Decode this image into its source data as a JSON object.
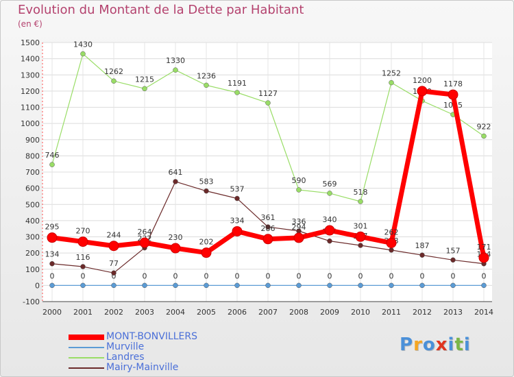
{
  "title": "Evolution du Montant de la Dette par Habitant",
  "unit_label": "(en €)",
  "chart_data": {
    "type": "line",
    "categories": [
      "2000",
      "2001",
      "2002",
      "2003",
      "2004",
      "2005",
      "2006",
      "2007",
      "2008",
      "2009",
      "2010",
      "2011",
      "2012",
      "2013",
      "2014"
    ],
    "ylim": [
      -100,
      1500
    ],
    "yticks": [
      -100,
      0,
      100,
      200,
      300,
      400,
      500,
      600,
      700,
      800,
      900,
      1000,
      1100,
      1200,
      1300,
      1400,
      1500
    ],
    "grid": true,
    "legend_position": "bottom-left",
    "series": [
      {
        "name": "MONT-BONVILLERS",
        "color": "#ff0000",
        "values": [
          295,
          270,
          244,
          264,
          230,
          202,
          334,
          286,
          294,
          340,
          301,
          262,
          1200,
          1178,
          171
        ]
      },
      {
        "name": "Murville",
        "color": "#5b9bd5",
        "values": [
          0,
          0,
          0,
          0,
          0,
          0,
          0,
          0,
          0,
          0,
          0,
          0,
          0,
          0,
          0
        ]
      },
      {
        "name": "Landres",
        "color": "#99dd66",
        "values": [
          746,
          1430,
          1262,
          1215,
          1330,
          1236,
          1191,
          1127,
          590,
          569,
          518,
          1252,
          1140,
          1055,
          922
        ]
      },
      {
        "name": "Mairy-Mainville",
        "color": "#6b2a2a",
        "values": [
          134,
          116,
          77,
          232,
          641,
          583,
          537,
          361,
          336,
          274,
          247,
          218,
          187,
          157,
          134
        ]
      }
    ]
  },
  "logo": {
    "letters": [
      "P",
      "r",
      "o",
      "x",
      "i",
      "t",
      "i"
    ],
    "colors": [
      "#4a90d9",
      "#f5a623",
      "#4a90d9",
      "#e0341f",
      "#4a90d9",
      "#7ab648",
      "#4a90d9"
    ]
  }
}
